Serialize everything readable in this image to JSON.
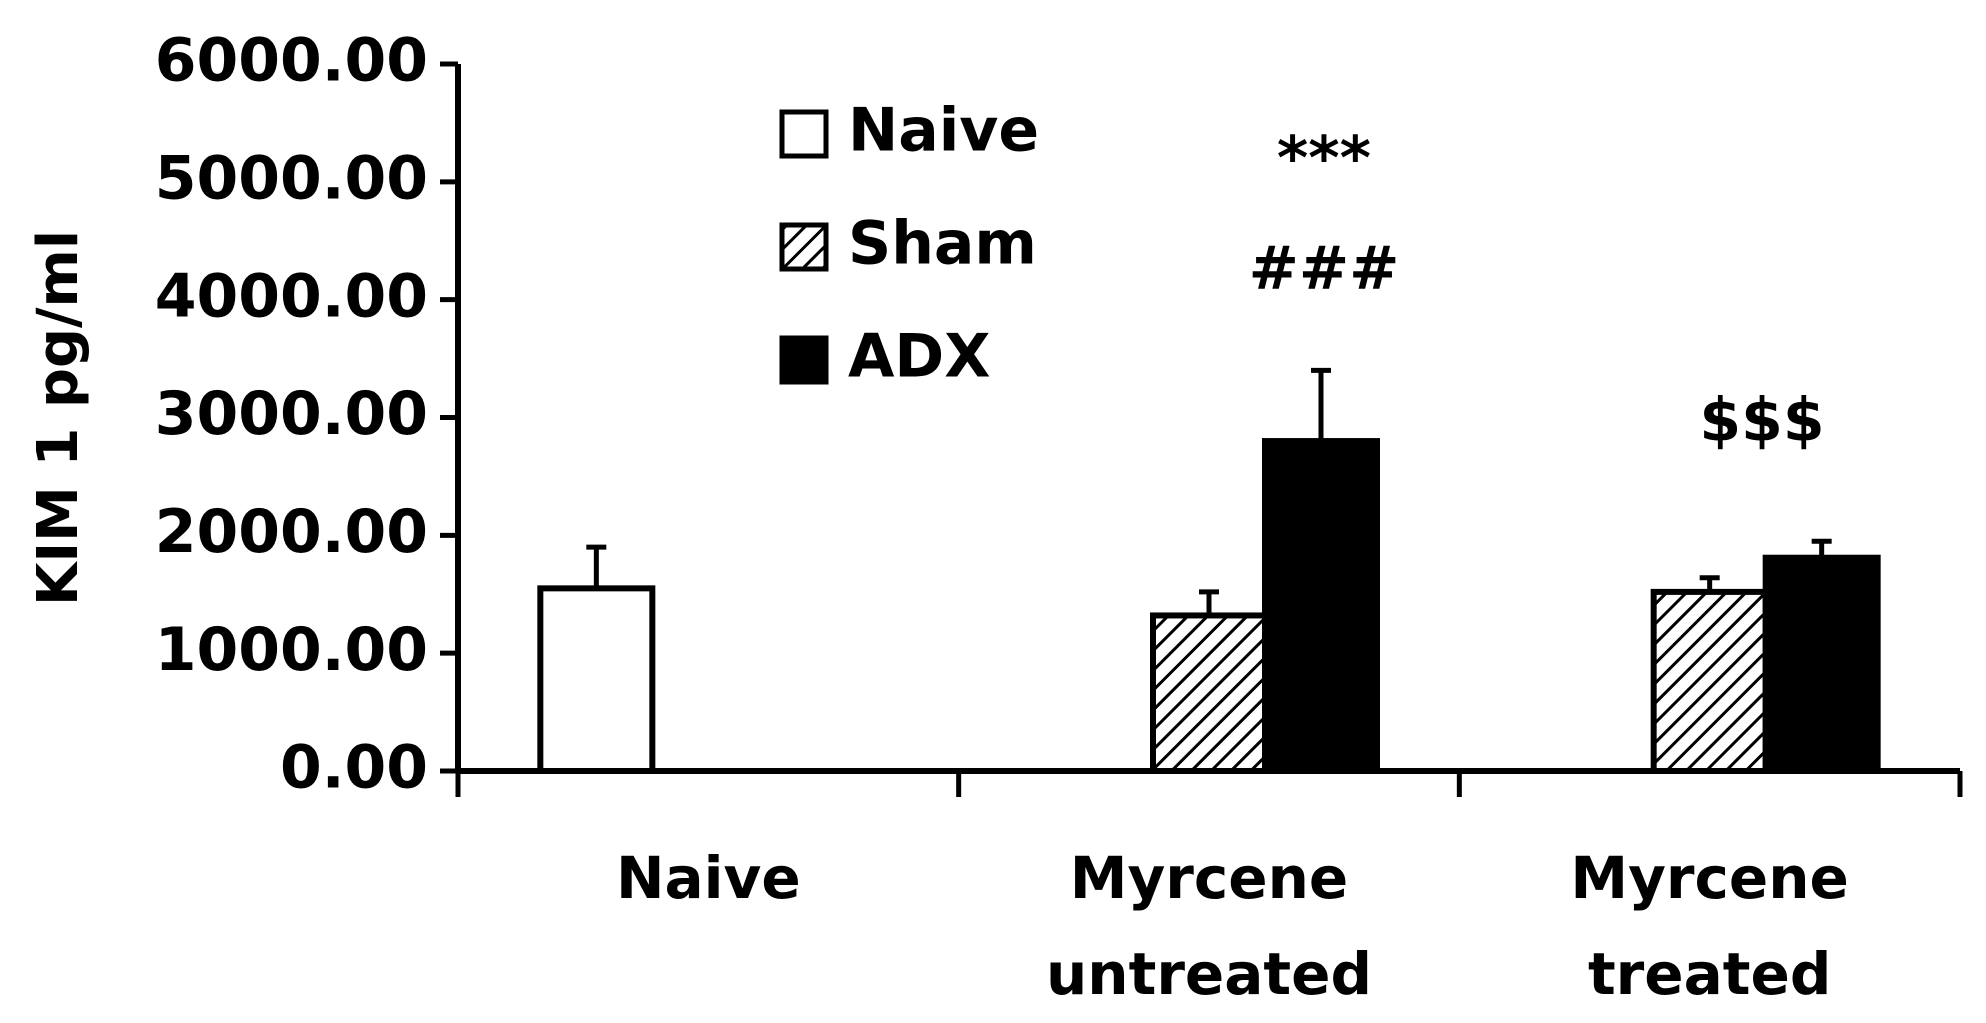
{
  "chart_data": {
    "type": "bar",
    "y_label": "KIM 1 pg/ml",
    "categories": [
      "Naive",
      "Myrcene untreated",
      "Myrcene treated"
    ],
    "series": [
      {
        "name": "Naive",
        "color": "#ffffff",
        "values": [
          1550,
          null,
          null
        ],
        "errors": [
          350,
          null,
          null
        ]
      },
      {
        "name": "Sham",
        "color": "#ffffff",
        "pattern": "hatch",
        "values": [
          null,
          1320,
          1520
        ],
        "errors": [
          null,
          200,
          120
        ]
      },
      {
        "name": "ADX",
        "color": "#000000",
        "values": [
          null,
          2800,
          1810
        ],
        "errors": [
          null,
          600,
          140
        ]
      }
    ],
    "annotations": [
      "***",
      "###",
      "$$$"
    ],
    "ylim": [
      0,
      6000
    ],
    "yticks": [
      {
        "value": 0,
        "label": "0.00"
      },
      {
        "value": 1000,
        "label": "1000.00"
      },
      {
        "value": 2000,
        "label": "2000.00"
      },
      {
        "value": 3000,
        "label": "3000.00"
      },
      {
        "value": 4000,
        "label": "4000.00"
      },
      {
        "value": 5000,
        "label": "5000.00"
      },
      {
        "value": 6000,
        "label": "6000.00"
      }
    ]
  }
}
